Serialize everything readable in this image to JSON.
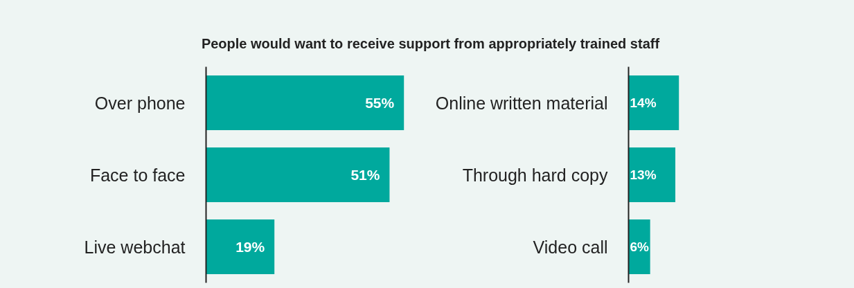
{
  "chart_data": [
    {
      "type": "bar",
      "orientation": "horizontal",
      "title": "People would want to receive support from appropriately trained staff",
      "categories": [
        "Over phone",
        "Face to face",
        "Live webchat"
      ],
      "values": [
        55,
        51,
        19
      ],
      "color": "#00a99d",
      "data_labels": true,
      "value_labels": [
        "55%",
        "51%",
        "19%"
      ],
      "grid": false
    },
    {
      "type": "bar",
      "orientation": "horizontal",
      "categories": [
        "Online written material",
        "Through hard copy",
        "Video call"
      ],
      "values": [
        14,
        13,
        6
      ],
      "color": "#00a99d",
      "data_labels": true,
      "value_labels": [
        "14%",
        "13%",
        "6%"
      ],
      "grid": false
    }
  ]
}
